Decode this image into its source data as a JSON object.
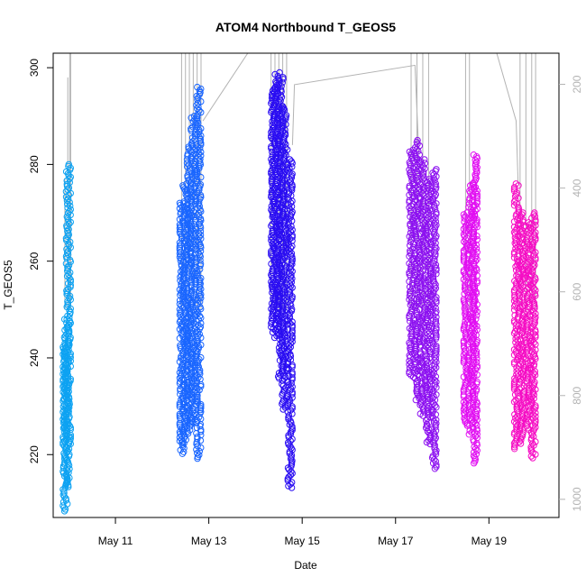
{
  "chart_data": {
    "type": "scatter",
    "title": "ATOM4 Northbound T_GEOS5",
    "xlabel": "Date",
    "ylabel": "T_GEOS5",
    "x_axis": {
      "kind": "date",
      "range": [
        "2018-05-09T16:00",
        "2018-05-20T12:00"
      ],
      "ticks": [
        "May 11",
        "May 13",
        "May 15",
        "May 17",
        "May 19"
      ],
      "tick_dates": [
        "2018-05-11",
        "2018-05-13",
        "2018-05-15",
        "2018-05-17",
        "2018-05-19"
      ]
    },
    "y_axis": {
      "range": [
        207,
        303
      ],
      "ticks": [
        "220",
        "240",
        "260",
        "280",
        "300"
      ],
      "tick_values": [
        220,
        240,
        260,
        280,
        300
      ]
    },
    "y2_axis": {
      "label": "",
      "range": [
        1035,
        140
      ],
      "ticks": [
        "200",
        "400",
        "600",
        "800",
        "1000"
      ],
      "tick_values": [
        200,
        400,
        600,
        800,
        1000
      ],
      "color": "#b3b3b3",
      "inverted": true
    },
    "grid": false,
    "marker": "open-circle",
    "series": [
      {
        "color": "#0da2f2",
        "segments": [
          {
            "x": [
              "2018-05-09T22:00",
              "2018-05-09T23:00",
              "2018-05-10T00:00"
            ],
            "ymin": [
              208,
              213,
              222
            ],
            "ymax": [
              243,
              248,
              280
            ]
          }
        ]
      },
      {
        "color": "#1a66ff",
        "segments": [
          {
            "x": [
              "2018-05-12T10:00",
              "2018-05-12T12:00",
              "2018-05-12T14:00",
              "2018-05-12T16:00",
              "2018-05-12T19:00"
            ],
            "ymin": [
              220,
              222,
              224,
              226,
              219
            ],
            "ymax": [
              272,
              276,
              284,
              290,
              296
            ]
          }
        ]
      },
      {
        "color": "#2a0df2",
        "segments": [
          {
            "x": [
              "2018-05-14T09:00",
              "2018-05-14T11:00",
              "2018-05-14T13:00",
              "2018-05-14T15:00",
              "2018-05-14T18:00"
            ],
            "ymin": [
              245,
              244,
              235,
              229,
              213
            ],
            "ymax": [
              296,
              299,
              298,
              292,
              281
            ]
          }
        ]
      },
      {
        "color": "#8c10f0",
        "segments": [
          {
            "x": [
              "2018-05-17T08:00",
              "2018-05-17T11:00",
              "2018-05-17T14:00",
              "2018-05-17T17:00",
              "2018-05-17T20:00"
            ],
            "ymin": [
              236,
              231,
              228,
              222,
              217
            ],
            "ymax": [
              283,
              285,
              281,
              277,
              279
            ]
          }
        ]
      },
      {
        "color": "#e10df2",
        "segments": [
          {
            "x": [
              "2018-05-18T12:00",
              "2018-05-18T15:00",
              "2018-05-18T17:00"
            ],
            "ymin": [
              226,
              224,
              218
            ],
            "ymax": [
              270,
              276,
              282
            ]
          }
        ]
      },
      {
        "color": "#f50cc4",
        "segments": [
          {
            "x": [
              "2018-05-19T14:00",
              "2018-05-19T17:00",
              "2018-05-19T20:00",
              "2018-05-19T23:00"
            ],
            "ymin": [
              221,
              222,
              225,
              219
            ],
            "ymax": [
              276,
              270,
              268,
              270
            ]
          }
        ]
      }
    ],
    "pressure_lines": {
      "color": "#b3b3b3",
      "vertical_excursions": [
        {
          "x": "2018-05-09T22:00",
          "to": 277
        },
        {
          "x": "2018-05-09T23:30",
          "to": 298
        },
        {
          "x": "2018-05-10T00:30",
          "to": 303
        },
        {
          "x": "2018-05-10T01:00",
          "to": 303
        },
        {
          "x": "2018-05-12T10:00",
          "to": 303
        },
        {
          "x": "2018-05-12T12:00",
          "to": 303
        },
        {
          "x": "2018-05-12T14:00",
          "to": 303
        },
        {
          "x": "2018-05-12T16:00",
          "to": 303
        },
        {
          "x": "2018-05-12T18:00",
          "to": 303
        },
        {
          "x": "2018-05-12T20:00",
          "to": 303
        },
        {
          "x": "2018-05-14T08:00",
          "to": 303
        },
        {
          "x": "2018-05-14T10:00",
          "to": 303
        },
        {
          "x": "2018-05-14T12:00",
          "to": 303
        },
        {
          "x": "2018-05-14T14:00",
          "to": 303
        },
        {
          "x": "2018-05-14T16:00",
          "to": 303
        },
        {
          "x": "2018-05-17T08:00",
          "to": 303
        },
        {
          "x": "2018-05-17T11:00",
          "to": 303
        },
        {
          "x": "2018-05-17T14:00",
          "to": 303
        },
        {
          "x": "2018-05-17T17:00",
          "to": 303
        },
        {
          "x": "2018-05-18T12:00",
          "to": 303
        },
        {
          "x": "2018-05-18T14:00",
          "to": 303
        },
        {
          "x": "2018-05-19T16:00",
          "to": 303
        },
        {
          "x": "2018-05-19T19:00",
          "to": 303
        },
        {
          "x": "2018-05-19T22:00",
          "to": 303
        },
        {
          "x": "2018-05-20T00:00",
          "to": 303
        }
      ],
      "transit_lines": [
        {
          "points": [
            [
              "2018-05-12T21:00",
              289
            ],
            [
              "2018-05-13T20:00",
              303
            ]
          ]
        },
        {
          "points": [
            [
              "2018-05-14T19:00",
              284
            ],
            [
              "2018-05-14T20:00",
              296.5
            ],
            [
              "2018-05-17T10:00",
              300.5
            ],
            [
              "2018-05-17T12:00",
              282
            ]
          ]
        },
        {
          "points": [
            [
              "2018-05-19T04:00",
              303
            ],
            [
              "2018-05-19T14:00",
              289
            ],
            [
              "2018-05-19T15:00",
              276
            ]
          ]
        }
      ]
    }
  }
}
